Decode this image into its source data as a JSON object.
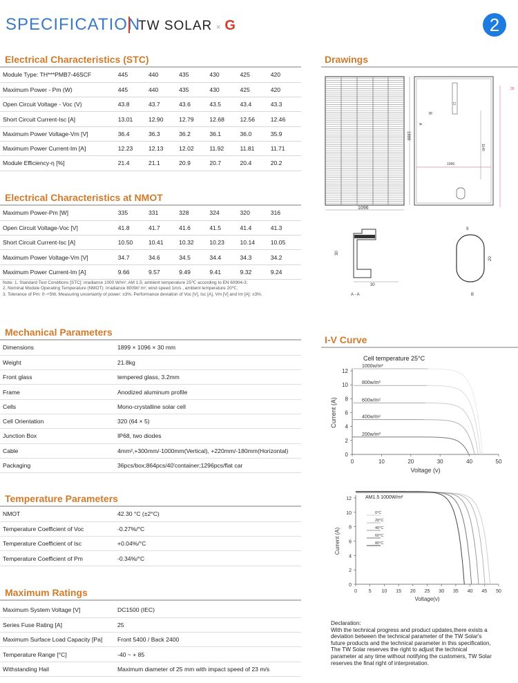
{
  "header": {
    "title": "SPECIFICATION",
    "brand_main": "TW SOLAR",
    "brand_x": "×",
    "brand_g": "G",
    "page_number": "2"
  },
  "stc": {
    "title": "Electrical Characteristics (STC)",
    "rows": [
      {
        "label": "Module Type: TH***PMB7-46SCF",
        "values": [
          "445",
          "440",
          "435",
          "430",
          "425",
          "420"
        ]
      },
      {
        "label": "Maximum Power - Pm (W)",
        "values": [
          "445",
          "440",
          "435",
          "430",
          "425",
          "420"
        ]
      },
      {
        "label": "Open Circuit Voltage - Voc (V)",
        "values": [
          "43.8",
          "43.7",
          "43.6",
          "43.5",
          "43.4",
          "43.3"
        ]
      },
      {
        "label": "Short Circuit Current-Isc [A]",
        "values": [
          "13.01",
          "12.90",
          "12.79",
          "12.68",
          "12.56",
          "12.46"
        ]
      },
      {
        "label": "Maximum Power Voltage-Vm [V]",
        "values": [
          "36.4",
          "36.3",
          "36.2",
          "36.1",
          "36.0",
          "35.9"
        ]
      },
      {
        "label": "Maximum Power Current-Im [A]",
        "values": [
          "12.23",
          "12.13",
          "12.02",
          "11.92",
          "11.81",
          "11.71"
        ]
      },
      {
        "label": "Module Efficiency-η [%]",
        "values": [
          "21.4",
          "21.1",
          "20.9",
          "20.7",
          "20.4",
          "20.2"
        ]
      }
    ]
  },
  "nmot": {
    "title": "Electrical Characteristics at NMOT",
    "rows": [
      {
        "label": "Maximum Power-Pm [W]",
        "values": [
          "335",
          "331",
          "328",
          "324",
          "320",
          "316"
        ]
      },
      {
        "label": "Open Circuit Voltage-Voc [V]",
        "values": [
          "41.8",
          "41.7",
          "41.6",
          "41.5",
          "41.4",
          "41.3"
        ]
      },
      {
        "label": "Short Circuit Current-Isc [A]",
        "values": [
          "10.50",
          "10.41",
          "10.32",
          "10.23",
          "10.14",
          "10.05"
        ]
      },
      {
        "label": "Maximum Power Voltage-Vm [V]",
        "values": [
          "34.7",
          "34.6",
          "34.5",
          "34.4",
          "34.3",
          "34.2"
        ]
      },
      {
        "label": "Maximum Power Current-Im [A]",
        "values": [
          "9.66",
          "9.57",
          "9.49",
          "9.41",
          "9.32",
          "9.24"
        ]
      }
    ],
    "notes": [
      "Note: 1. Standard Test Conditions [STC]: irradiance 1000 W/m²; AM 1.5; ambient temperature 25℃ according to EN 60904-3;",
      "2. Nominal Module Operating Temperature (NMOT): Irradiance 800W/ m²; wind speed 1m/s , ambient temperature 20℃.",
      "3. Tolerance of Pm: 0~+5W, Measuring uncertainty of power: ±3%. Performance deviation of Voc [V], Isc [A], Vm [V] and Im [A]: ±3%."
    ]
  },
  "mech": {
    "title": "Mechanical Parameters",
    "rows": [
      {
        "label": "Dimensions",
        "value": "1899 × 1096 × 30 mm"
      },
      {
        "label": "Weight",
        "value": "21.8kg"
      },
      {
        "label": "Front glass",
        "value": "tempered glass, 3.2mm"
      },
      {
        "label": "Frame",
        "value": "Anodized aluminum profile"
      },
      {
        "label": "Cells",
        "value": "Mono-crystalline solar cell"
      },
      {
        "label": "Cell Orientation",
        "value": "320 (64 × 5)"
      },
      {
        "label": "Junction Box",
        "value": "IP68, two diodes"
      },
      {
        "label": "Cable",
        "value": "4mm²,+300mm/-1000mm(Vertical), +220mm/-180mm(Horizontal)"
      },
      {
        "label": "Packaging",
        "value": "36pcs/box;864pcs/40'container;1296pcs/flat car"
      }
    ]
  },
  "temp": {
    "title": "Temperature Parameters",
    "rows": [
      {
        "label": "NMOT",
        "value": "42.30 °C (±2°C)"
      },
      {
        "label": "Temperature Coefficient of Voc",
        "value": "-0.27%/°C"
      },
      {
        "label": "Temperature Coefficient of Isc",
        "value": "+0.04%/°C"
      },
      {
        "label": "Temperature Coefficient of Pm",
        "value": "-0.34%/°C"
      }
    ]
  },
  "maxr": {
    "title": "Maximum Ratings",
    "rows": [
      {
        "label": "Maximum System Voltage [V]",
        "value": "DC1500 (IEC)"
      },
      {
        "label": "Series Fuse Rating [A]",
        "value": "25"
      },
      {
        "label": "Maximum Surface Load Capacity [Pa]",
        "value": "Front 5400 / Back 2400"
      },
      {
        "label": "Temperature Range [°C]",
        "value": "-40 ~ + 85"
      },
      {
        "label": "Withstanding Hail",
        "value": "Maximum diameter of 25 mm with impact speed of 23 m/s"
      }
    ]
  },
  "drawings": {
    "title": "Drawings",
    "dim_width": "1096",
    "dim_height": "1899",
    "dim_mount": "1140",
    "dim_hole": "30",
    "dim_frame_h": "30",
    "dim_frame_w": "30",
    "dim_b_w": "9",
    "dim_b_h": "20",
    "label_aa": "A - A",
    "label_b": "B",
    "mark_a": "A",
    "mark_b": "B"
  },
  "iv": {
    "title": "I-V Curve"
  },
  "declaration": {
    "lines": [
      "Declaration:",
      "With the technical progress and product updates,there exists a",
      "deviation between the technical parameter of the TW Solar's",
      "future products and the technical parameter in this specification,",
      "The TW Solar reserves the right to adjust the technical",
      "parameter at any time without notifying the customers, TW Solar",
      "reserves the final right of interpretation."
    ]
  },
  "chart_data": [
    {
      "type": "line",
      "title": "Cell temperature 25°C",
      "xlabel": "Voltage (v)",
      "ylabel": "Current (A)",
      "xlim": [
        0,
        50
      ],
      "ylim": [
        0,
        12
      ],
      "xticks": [
        "0",
        "10",
        "20",
        "30",
        "40",
        "50"
      ],
      "yticks": [
        "0",
        "2",
        "4",
        "6",
        "8",
        "10",
        "12"
      ],
      "series": [
        {
          "name": "1000w/m²",
          "isc": 12.3,
          "voc": 44.5
        },
        {
          "name": "800w/m²",
          "isc": 9.9,
          "voc": 43.8
        },
        {
          "name": "600w/m²",
          "isc": 7.4,
          "voc": 43.0
        },
        {
          "name": "400w/m²",
          "isc": 5.0,
          "voc": 41.8
        },
        {
          "name": "200w/m²",
          "isc": 2.5,
          "voc": 39.8
        }
      ]
    },
    {
      "type": "line",
      "title": "AM1.5 1000W/m²",
      "xlabel": "Voltage(v)",
      "ylabel": "Current (A)",
      "xlim": [
        0,
        50
      ],
      "ylim": [
        0,
        12
      ],
      "xticks": [
        "0",
        "5",
        "10",
        "15",
        "20",
        "25",
        "30",
        "35",
        "40",
        "45",
        "50"
      ],
      "yticks": [
        "0",
        "2",
        "4",
        "6",
        "8",
        "10",
        "12"
      ],
      "series": [
        {
          "name": "0°C",
          "isc": 12.7,
          "voc": 47.0
        },
        {
          "name": "20°C",
          "isc": 12.75,
          "voc": 45.2
        },
        {
          "name": "40°C",
          "isc": 12.8,
          "voc": 43.0
        },
        {
          "name": "60°C",
          "isc": 12.85,
          "voc": 40.5
        },
        {
          "name": "80°C",
          "isc": 12.9,
          "voc": 38.0
        }
      ]
    }
  ]
}
